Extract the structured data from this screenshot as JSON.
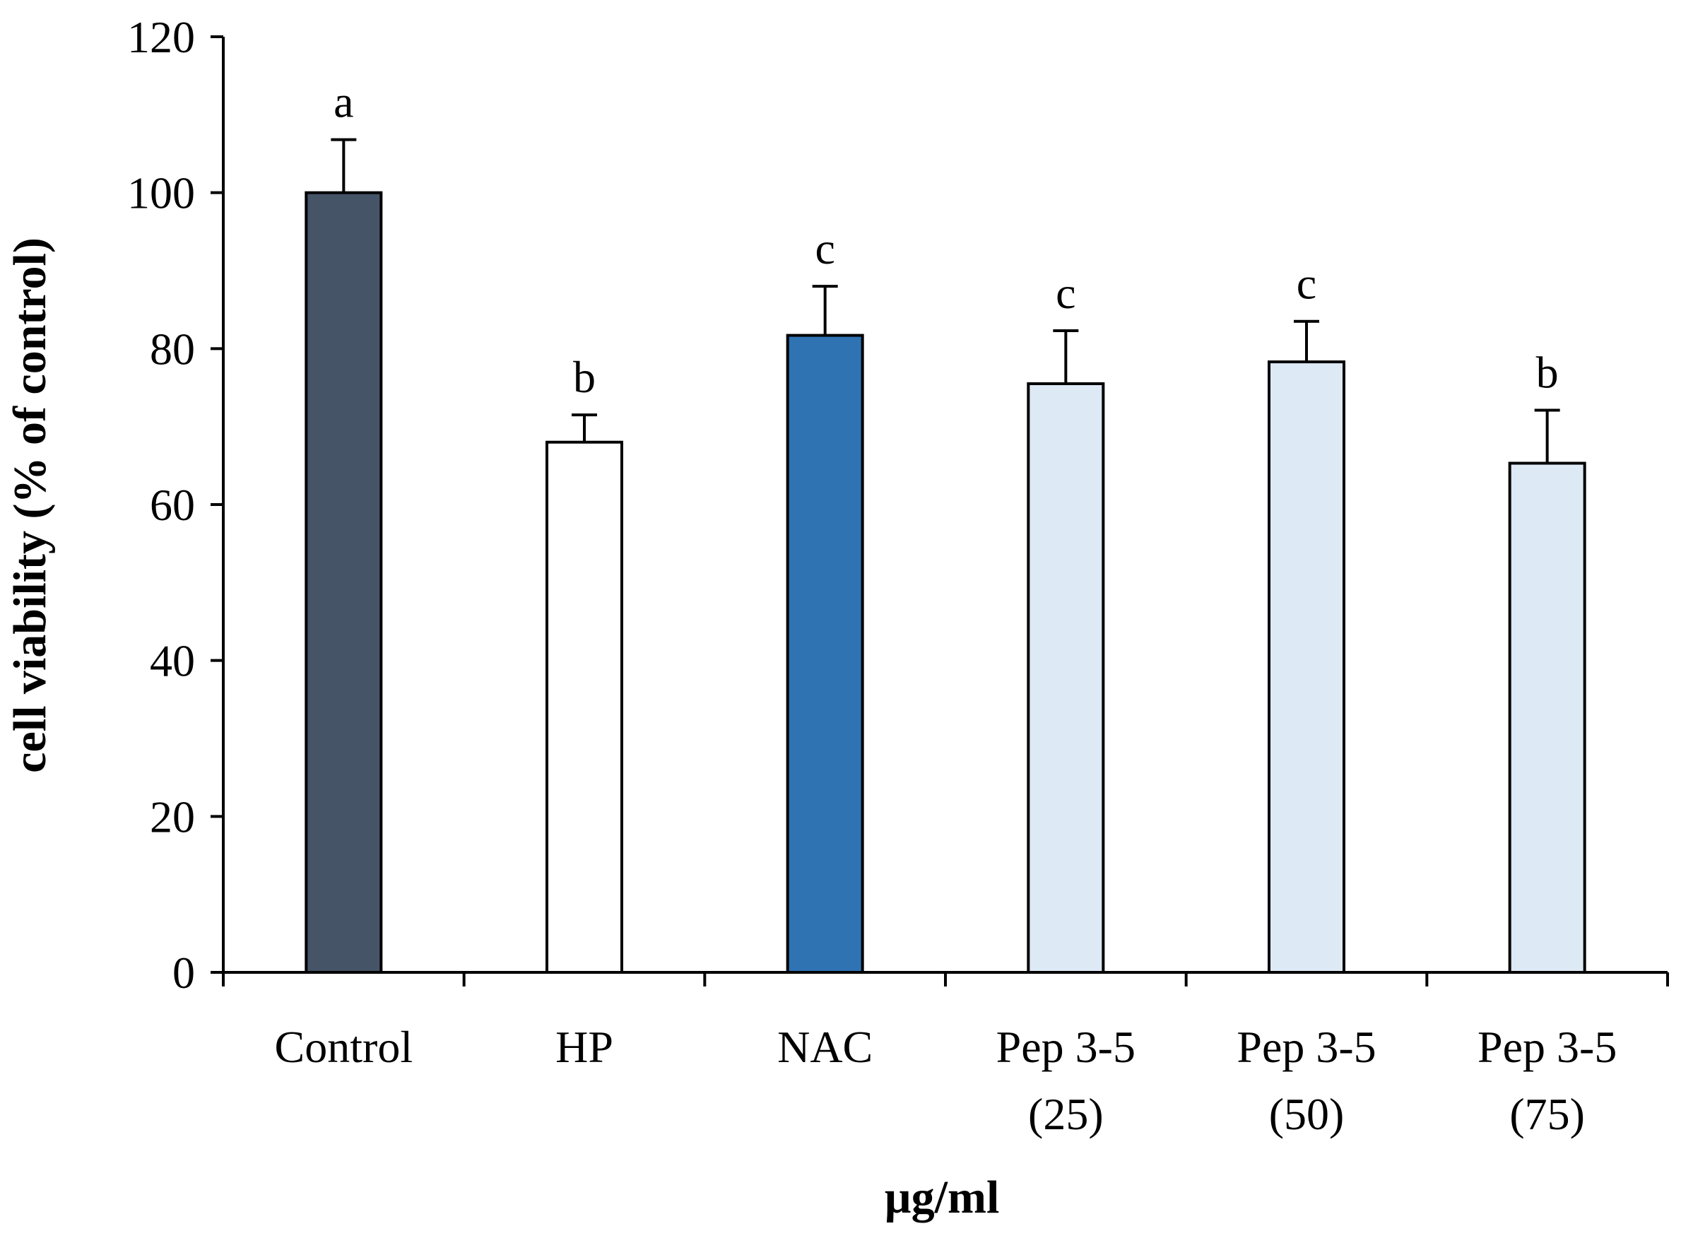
{
  "chart_data": {
    "type": "bar",
    "title": "",
    "xlabel": "µg/ml",
    "ylabel": "cell viability  (% of control)",
    "ylim": [
      0,
      120
    ],
    "yticks": [
      "0",
      "20",
      "40",
      "60",
      "80",
      "100",
      "120"
    ],
    "categories": [
      {
        "line1": "Control",
        "line2": ""
      },
      {
        "line1": "HP",
        "line2": ""
      },
      {
        "line1": "NAC",
        "line2": ""
      },
      {
        "line1": "Pep 3-5",
        "line2": "(25)"
      },
      {
        "line1": "Pep 3-5",
        "line2": "(50)"
      },
      {
        "line1": "Pep 3-5",
        "line2": "(75)"
      }
    ],
    "values": [
      100,
      68,
      81.7,
      75.5,
      78.3,
      65.3
    ],
    "errors": [
      6.8,
      3.5,
      6.3,
      6.8,
      5.2,
      6.8
    ],
    "significance": [
      "a",
      "b",
      "c",
      "c",
      "c",
      "b"
    ],
    "colors": [
      "#465468",
      "#ffffff",
      "#3073b3",
      "#dde9f5",
      "#dde9f5",
      "#dde9f5"
    ],
    "grid": false,
    "legend": "none"
  }
}
